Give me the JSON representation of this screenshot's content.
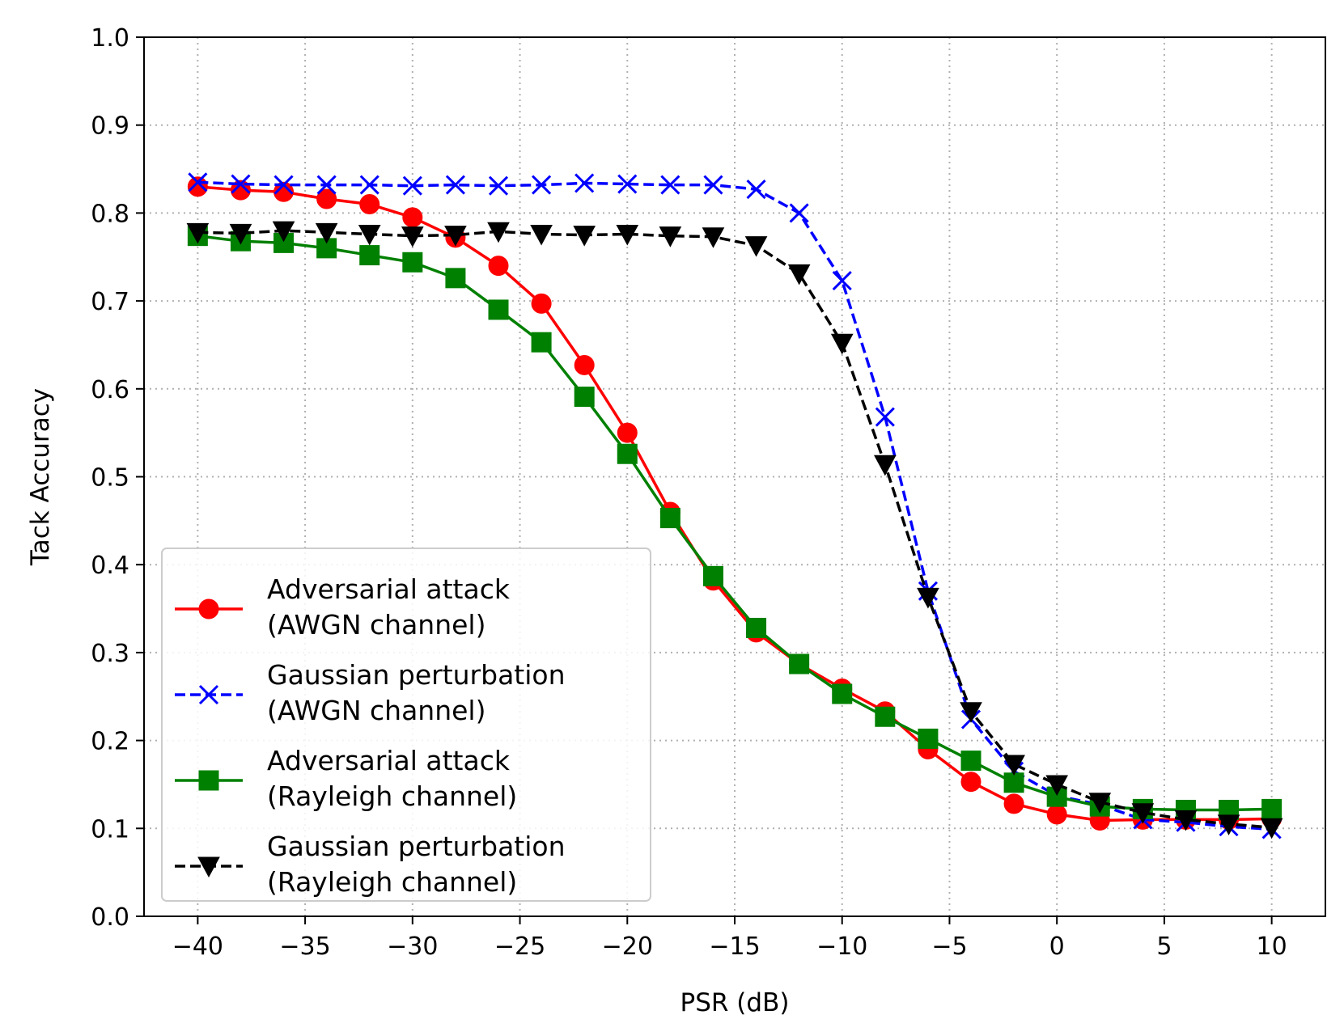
{
  "chart_data": {
    "type": "line",
    "xlabel": "PSR (dB)",
    "ylabel": "Tack Accuracy",
    "xlim": [
      -42.5,
      12.5
    ],
    "ylim": [
      0.0,
      1.0
    ],
    "x_ticks": [
      -40,
      -35,
      -30,
      -25,
      -20,
      -15,
      -10,
      -5,
      0,
      5,
      10
    ],
    "x_tick_labels": [
      "−40",
      "−35",
      "−30",
      "−25",
      "−20",
      "−15",
      "−10",
      "−5",
      "0",
      "5",
      "10"
    ],
    "y_ticks": [
      0.0,
      0.1,
      0.2,
      0.3,
      0.4,
      0.5,
      0.6,
      0.7,
      0.8,
      0.9,
      1.0
    ],
    "y_tick_labels": [
      "0.0",
      "0.1",
      "0.2",
      "0.3",
      "0.4",
      "0.5",
      "0.6",
      "0.7",
      "0.8",
      "0.9",
      "1.0"
    ],
    "grid": true,
    "legend_position": "lower-left",
    "x": [
      -40,
      -38,
      -36,
      -34,
      -32,
      -30,
      -28,
      -26,
      -24,
      -22,
      -20,
      -18,
      -16,
      -14,
      -12,
      -10,
      -8,
      -6,
      -4,
      -2,
      0,
      2,
      4,
      6,
      8,
      10
    ],
    "series": [
      {
        "name": "Adversarial attack\n(AWGN channel)",
        "color": "#ff0000",
        "linestyle": "solid",
        "marker": "circle",
        "values": [
          0.83,
          0.826,
          0.824,
          0.816,
          0.81,
          0.795,
          0.772,
          0.74,
          0.697,
          0.627,
          0.55,
          0.46,
          0.382,
          0.323,
          0.287,
          0.259,
          0.233,
          0.19,
          0.153,
          0.128,
          0.116,
          0.109,
          0.11,
          0.11,
          0.11,
          0.111
        ]
      },
      {
        "name": "Gaussian perturbation\n(AWGN channel)",
        "color": "#0000ff",
        "linestyle": "dashed",
        "marker": "x",
        "values": [
          0.835,
          0.833,
          0.832,
          0.832,
          0.832,
          0.831,
          0.832,
          0.831,
          0.832,
          0.834,
          0.833,
          0.832,
          0.832,
          0.827,
          0.8,
          0.723,
          0.568,
          0.37,
          0.224,
          0.165,
          0.137,
          0.127,
          0.11,
          0.107,
          0.102,
          0.099
        ]
      },
      {
        "name": "Adversarial attack\n(Rayleigh channel)",
        "color": "#008000",
        "linestyle": "solid",
        "marker": "square",
        "values": [
          0.774,
          0.768,
          0.766,
          0.76,
          0.752,
          0.744,
          0.726,
          0.69,
          0.653,
          0.591,
          0.526,
          0.453,
          0.387,
          0.328,
          0.287,
          0.253,
          0.227,
          0.202,
          0.177,
          0.152,
          0.136,
          0.125,
          0.122,
          0.121,
          0.121,
          0.122
        ]
      },
      {
        "name": "Gaussian perturbation\n(Rayleigh channel)",
        "color": "#000000",
        "linestyle": "dashed",
        "marker": "triangle-down",
        "values": [
          0.778,
          0.777,
          0.78,
          0.778,
          0.776,
          0.774,
          0.775,
          0.779,
          0.776,
          0.775,
          0.776,
          0.774,
          0.773,
          0.763,
          0.731,
          0.652,
          0.514,
          0.363,
          0.233,
          0.173,
          0.15,
          0.13,
          0.118,
          0.11,
          0.105,
          0.101
        ]
      }
    ]
  }
}
